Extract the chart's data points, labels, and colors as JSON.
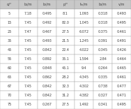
{
  "headers": [
    "α/°",
    "b₁/m",
    "b₂/m",
    "p/°",
    "tₘ/m",
    "b₃/m",
    "v/m"
  ],
  "rows": [
    [
      "5",
      "7.18",
      "0.495",
      "8.1",
      "1.093",
      "0.318",
      "0.493"
    ],
    [
      "15",
      "7.45",
      "0.492",
      "82.0",
      "1.045",
      "0.318",
      "0.495"
    ],
    [
      "25",
      "7.47",
      "0.467",
      "27.5",
      "6.072",
      "0.375",
      "0.461"
    ],
    [
      "35",
      "7.45",
      "0.493",
      "21.5",
      "1.245",
      "0.391",
      "0.491"
    ],
    [
      "45",
      "7.45",
      "0.842",
      "22.4",
      "4.022",
      "0.345",
      "0.426"
    ],
    [
      "55",
      "7.45",
      "0.892",
      "35.1",
      "1.594",
      "2.84",
      "0.464"
    ],
    [
      "60",
      "7.45",
      "0.848",
      "45.1",
      "9.4",
      "0.264",
      "0.465"
    ],
    [
      "65",
      "7.45",
      "0.862",
      "28.2",
      "4.345",
      "0.335",
      "0.461"
    ],
    [
      "67",
      "7.45",
      "0.842",
      "32.3",
      "4.302",
      "0.738",
      "0.477"
    ],
    [
      "70",
      "7.45",
      "0.842",
      "31.2",
      "4.382",
      "0.327",
      "0.471"
    ],
    [
      "75",
      "7.45",
      "0.267",
      "27.5",
      "1.492",
      "0.341",
      "0.495"
    ]
  ],
  "header_bg": "#c8c8c8",
  "row_bg": "#ffffff",
  "text_color": "#404040",
  "font_size": 3.5,
  "line_width": 0.25,
  "edge_color": "#999999",
  "fig_width": 1.88,
  "fig_height": 1.56,
  "dpi": 100
}
